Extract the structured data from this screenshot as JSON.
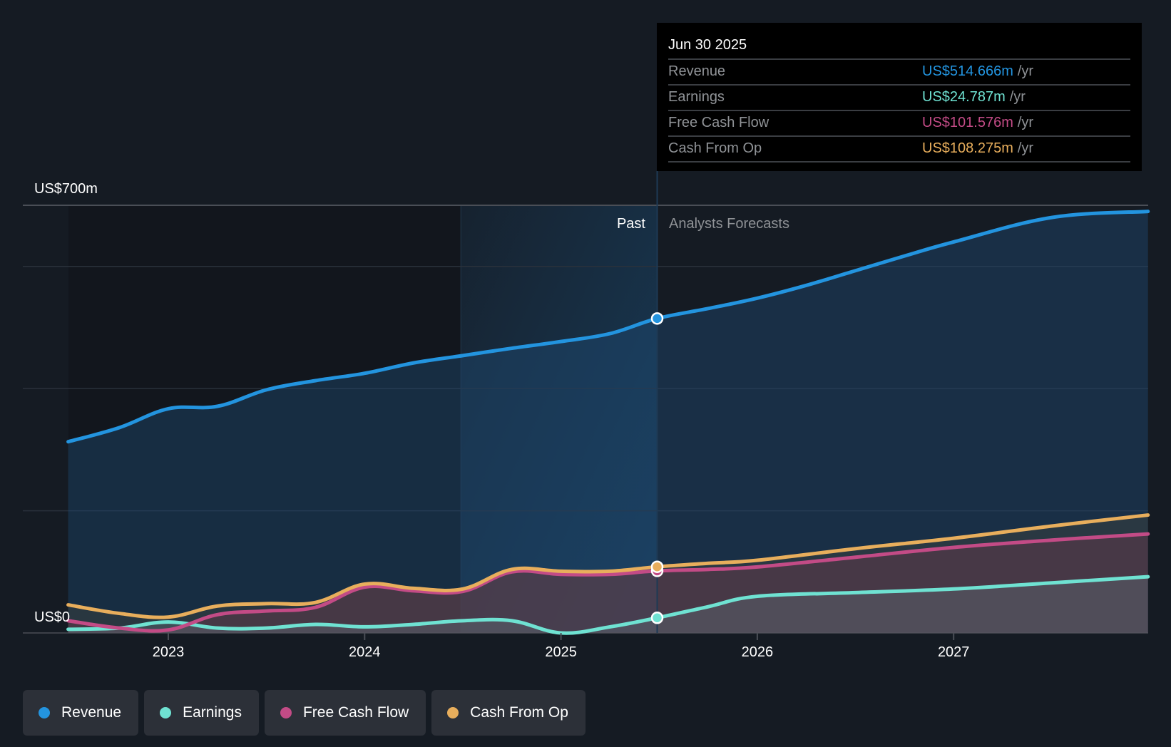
{
  "chart_data": {
    "type": "area",
    "title": "",
    "y_axis": {
      "top_label": "US$700m",
      "bottom_label": "US$0",
      "ylim": [
        0,
        700
      ],
      "gridlines": [
        0,
        200,
        400,
        600,
        700
      ],
      "unit": "US$ m"
    },
    "x_axis": {
      "ticks": [
        2023,
        2024,
        2025,
        2026,
        2027
      ],
      "tick_labels": [
        "2023",
        "2024",
        "2025",
        "2026",
        "2027"
      ],
      "xlim": [
        2022.49,
        2027.99
      ]
    },
    "period_labels": {
      "past": "Past",
      "forecast": "Analysts Forecasts"
    },
    "divider_x": 2025.49,
    "highlight_range": [
      2024.49,
      2025.49
    ],
    "series": [
      {
        "name": "Revenue",
        "color": "#2394df",
        "points": [
          [
            2022.49,
            313
          ],
          [
            2022.75,
            336
          ],
          [
            2023.0,
            367
          ],
          [
            2023.25,
            371
          ],
          [
            2023.5,
            398
          ],
          [
            2023.75,
            413
          ],
          [
            2024.0,
            425
          ],
          [
            2024.25,
            442
          ],
          [
            2024.5,
            454
          ],
          [
            2024.75,
            466
          ],
          [
            2025.0,
            477
          ],
          [
            2025.25,
            490
          ],
          [
            2025.49,
            514.666
          ],
          [
            2025.75,
            531
          ],
          [
            2026.0,
            548
          ],
          [
            2026.25,
            569
          ],
          [
            2026.5,
            593
          ],
          [
            2026.75,
            617
          ],
          [
            2027.0,
            640
          ],
          [
            2027.5,
            680
          ],
          [
            2027.99,
            690
          ]
        ]
      },
      {
        "name": "Earnings",
        "color": "#6fe2d2",
        "points": [
          [
            2022.49,
            6
          ],
          [
            2022.75,
            8
          ],
          [
            2023.0,
            18
          ],
          [
            2023.25,
            8
          ],
          [
            2023.5,
            8
          ],
          [
            2023.75,
            14
          ],
          [
            2024.0,
            10
          ],
          [
            2024.25,
            14
          ],
          [
            2024.5,
            20
          ],
          [
            2024.75,
            20
          ],
          [
            2025.0,
            0
          ],
          [
            2025.25,
            10
          ],
          [
            2025.49,
            24.787
          ],
          [
            2025.75,
            43
          ],
          [
            2026.0,
            60
          ],
          [
            2026.5,
            66
          ],
          [
            2027.0,
            72
          ],
          [
            2027.5,
            82
          ],
          [
            2027.99,
            92
          ]
        ]
      },
      {
        "name": "Free Cash Flow",
        "color": "#c34b86",
        "points": [
          [
            2022.49,
            20
          ],
          [
            2022.75,
            8
          ],
          [
            2023.0,
            5
          ],
          [
            2023.25,
            30
          ],
          [
            2023.5,
            36
          ],
          [
            2023.75,
            42
          ],
          [
            2024.0,
            75
          ],
          [
            2024.25,
            69
          ],
          [
            2024.5,
            68
          ],
          [
            2024.75,
            100
          ],
          [
            2025.0,
            96
          ],
          [
            2025.25,
            96
          ],
          [
            2025.49,
            101.576
          ],
          [
            2025.75,
            104
          ],
          [
            2026.0,
            108
          ],
          [
            2026.5,
            124
          ],
          [
            2027.0,
            140
          ],
          [
            2027.5,
            152
          ],
          [
            2027.99,
            162
          ]
        ]
      },
      {
        "name": "Cash From Op",
        "color": "#e8ae5c",
        "points": [
          [
            2022.49,
            46
          ],
          [
            2022.75,
            32
          ],
          [
            2023.0,
            26
          ],
          [
            2023.25,
            44
          ],
          [
            2023.5,
            48
          ],
          [
            2023.75,
            50
          ],
          [
            2024.0,
            80
          ],
          [
            2024.25,
            73
          ],
          [
            2024.5,
            72
          ],
          [
            2024.75,
            104
          ],
          [
            2025.0,
            101
          ],
          [
            2025.25,
            101
          ],
          [
            2025.49,
            108.275
          ],
          [
            2025.75,
            114
          ],
          [
            2026.0,
            119
          ],
          [
            2026.5,
            138
          ],
          [
            2027.0,
            155
          ],
          [
            2027.5,
            175
          ],
          [
            2027.99,
            193
          ]
        ]
      }
    ],
    "tooltip": {
      "date": "Jun 30 2025",
      "x": 2025.49,
      "rows": [
        {
          "name": "Revenue",
          "value": "US$514.666m",
          "unit": "/yr",
          "color": "#2394df"
        },
        {
          "name": "Earnings",
          "value": "US$24.787m",
          "unit": "/yr",
          "color": "#6fe2d2"
        },
        {
          "name": "Free Cash Flow",
          "value": "US$101.576m",
          "unit": "/yr",
          "color": "#c34b86"
        },
        {
          "name": "Cash From Op",
          "value": "US$108.275m",
          "unit": "/yr",
          "color": "#e8ae5c"
        }
      ]
    },
    "legend": [
      {
        "name": "Revenue",
        "color": "#2394df"
      },
      {
        "name": "Earnings",
        "color": "#6fe2d2"
      },
      {
        "name": "Free Cash Flow",
        "color": "#c34b86"
      },
      {
        "name": "Cash From Op",
        "color": "#e8ae5c"
      }
    ],
    "legend_position": "bottom-left"
  }
}
